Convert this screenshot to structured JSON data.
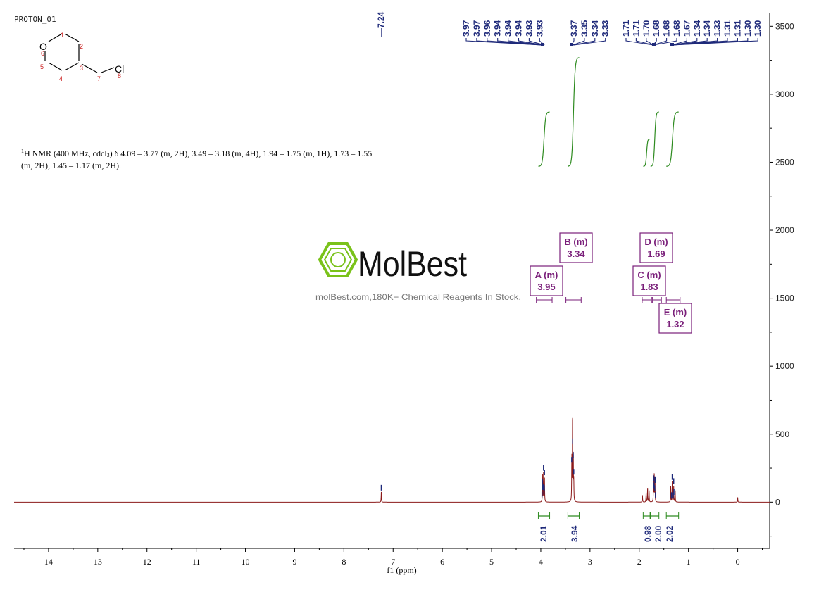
{
  "sample_name": "PROTON_01",
  "molecule": {
    "atoms": [
      {
        "label": "O",
        "num": "6"
      },
      {
        "label": "",
        "num": "1"
      },
      {
        "label": "",
        "num": "2"
      },
      {
        "label": "",
        "num": "3"
      },
      {
        "label": "",
        "num": "4"
      },
      {
        "label": "",
        "num": "5"
      },
      {
        "label": "",
        "num": "7"
      },
      {
        "label": "Cl",
        "num": "8"
      }
    ]
  },
  "description": {
    "nucleus_sup": "1",
    "nucleus": "H NMR (400 MHz, cdcl",
    "solvent_sub": "3",
    "line1_rest": ") δ 4.09 – 3.77 (m, 2H), 3.49 – 3.18 (m, 4H), 1.94 – 1.75 (m, 1H), 1.73 – 1.55",
    "line2": "(m, 2H), 1.45 – 1.17 (m, 2H)."
  },
  "watermark": {
    "brand": "MolBest",
    "tagline": "molBest.com,180K+ Chemical Reagents In Stock."
  },
  "colors": {
    "spectrum": "#8b1a1a",
    "peak_label": "#1f2a7a",
    "integral": "#2e8b20",
    "multiplet_box": "#7a1f7a",
    "axis": "#000000",
    "brand_green": "#7ac21a"
  },
  "chart_data": {
    "type": "line",
    "xlabel": "f1 (ppm)",
    "x_reversed": true,
    "xlim": [
      14.7,
      -0.65
    ],
    "ylim": [
      -340,
      3600
    ],
    "x_ticks": [
      14,
      13,
      12,
      11,
      10,
      9,
      8,
      7,
      6,
      5,
      4,
      3,
      2,
      1,
      0
    ],
    "y_ticks": [
      0,
      500,
      1000,
      1500,
      2000,
      2500,
      3000,
      3500
    ],
    "y_axis_side": "right",
    "peak_labels": [
      {
        "text": "7.24",
        "ppm": 7.24,
        "group": 0
      },
      {
        "text": "3.97",
        "ppm": 3.975,
        "group": 1
      },
      {
        "text": "3.97",
        "ppm": 3.968,
        "group": 1
      },
      {
        "text": "3.96",
        "ppm": 3.96,
        "group": 1
      },
      {
        "text": "3.94",
        "ppm": 3.945,
        "group": 1
      },
      {
        "text": "3.94",
        "ppm": 3.94,
        "group": 1
      },
      {
        "text": "3.94",
        "ppm": 3.935,
        "group": 1
      },
      {
        "text": "3.93",
        "ppm": 3.93,
        "group": 1
      },
      {
        "text": "3.93",
        "ppm": 3.925,
        "group": 1
      },
      {
        "text": "3.37",
        "ppm": 3.372,
        "group": 2
      },
      {
        "text": "3.35",
        "ppm": 3.352,
        "group": 2
      },
      {
        "text": "3.34",
        "ppm": 3.342,
        "group": 2
      },
      {
        "text": "3.33",
        "ppm": 3.33,
        "group": 2
      },
      {
        "text": "1.71",
        "ppm": 1.712,
        "group": 3
      },
      {
        "text": "1.71",
        "ppm": 1.708,
        "group": 3
      },
      {
        "text": "1.70",
        "ppm": 1.7,
        "group": 3
      },
      {
        "text": "1.68",
        "ppm": 1.686,
        "group": 3
      },
      {
        "text": "1.68",
        "ppm": 1.682,
        "group": 3
      },
      {
        "text": "1.68",
        "ppm": 1.678,
        "group": 3
      },
      {
        "text": "1.67",
        "ppm": 1.67,
        "group": 4
      },
      {
        "text": "1.34",
        "ppm": 1.345,
        "group": 4
      },
      {
        "text": "1.34",
        "ppm": 1.34,
        "group": 4
      },
      {
        "text": "1.33",
        "ppm": 1.33,
        "group": 4
      },
      {
        "text": "1.31",
        "ppm": 1.315,
        "group": 4
      },
      {
        "text": "1.31",
        "ppm": 1.31,
        "group": 4
      },
      {
        "text": "1.30",
        "ppm": 1.3,
        "group": 4
      },
      {
        "text": "1.30",
        "ppm": 1.295,
        "group": 4
      }
    ],
    "peaks": [
      {
        "ppm": 7.24,
        "height": 75
      },
      {
        "ppm": 3.965,
        "height": 200
      },
      {
        "ppm": 3.945,
        "height": 210
      },
      {
        "ppm": 3.925,
        "height": 180
      },
      {
        "ppm": 3.37,
        "height": 330
      },
      {
        "ppm": 3.355,
        "height": 650
      },
      {
        "ppm": 3.34,
        "height": 340
      },
      {
        "ppm": 3.33,
        "height": 140
      },
      {
        "ppm": 1.935,
        "height": 55
      },
      {
        "ppm": 1.86,
        "height": 70
      },
      {
        "ppm": 1.83,
        "height": 110
      },
      {
        "ppm": 1.8,
        "height": 90
      },
      {
        "ppm": 1.71,
        "height": 170
      },
      {
        "ppm": 1.695,
        "height": 210
      },
      {
        "ppm": 1.68,
        "height": 160
      },
      {
        "ppm": 1.36,
        "height": 120
      },
      {
        "ppm": 1.33,
        "height": 150
      },
      {
        "ppm": 1.3,
        "height": 120
      },
      {
        "ppm": 1.27,
        "height": 90
      },
      {
        "ppm": 0.0,
        "height": 35
      }
    ],
    "integrals": [
      {
        "from": 4.05,
        "to": 3.82,
        "value": "2.01",
        "start": 2470,
        "end": 2870
      },
      {
        "from": 3.45,
        "to": 3.22,
        "value": "3.94",
        "start": 2470,
        "end": 3270
      },
      {
        "from": 1.92,
        "to": 1.78,
        "value": "0.98",
        "start": 2470,
        "end": 2670
      },
      {
        "from": 1.77,
        "to": 1.6,
        "value": "2.00",
        "start": 2470,
        "end": 2870
      },
      {
        "from": 1.45,
        "to": 1.2,
        "value": "2.02",
        "start": 2470,
        "end": 2870
      }
    ],
    "multiplets": [
      {
        "label": "A (m)",
        "shift": "3.95",
        "range": [
          4.09,
          3.77
        ]
      },
      {
        "label": "B (m)",
        "shift": "3.34",
        "range": [
          3.49,
          3.18
        ]
      },
      {
        "label": "C (m)",
        "shift": "1.83",
        "range": [
          1.94,
          1.75
        ]
      },
      {
        "label": "D (m)",
        "shift": "1.69",
        "range": [
          1.73,
          1.55
        ]
      },
      {
        "label": "E (m)",
        "shift": "1.32",
        "range": [
          1.45,
          1.17
        ]
      }
    ]
  }
}
